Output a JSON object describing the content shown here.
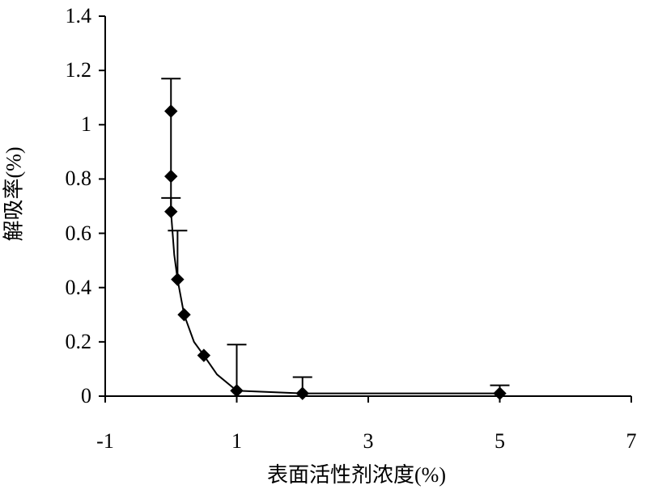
{
  "chart": {
    "type": "scatter-line-errorbar",
    "y_axis_label": "解吸率(%)",
    "x_axis_label": "表面活性剂浓度(%)",
    "xlim": [
      -1,
      7
    ],
    "ylim": [
      0,
      1.4
    ],
    "x_ticks": [
      -1,
      1,
      3,
      5,
      7
    ],
    "y_ticks": [
      0,
      0.2,
      0.4,
      0.6,
      0.8,
      1,
      1.2,
      1.4
    ],
    "background_color": "#ffffff",
    "axis_color": "#000000",
    "line_color": "#000000",
    "marker_color": "#000000",
    "marker_style": "diamond",
    "marker_size": 12,
    "line_width": 2,
    "axis_width": 2,
    "tick_length": 8,
    "label_fontsize": 26,
    "tick_fontsize": 26,
    "font_family": "SimSun",
    "data_points": [
      {
        "x": 0.0,
        "y": 1.05,
        "err": 0.12
      },
      {
        "x": 0.0,
        "y": 0.81,
        "err": 0.0
      },
      {
        "x": 0.0,
        "y": 0.68,
        "err": 0.05
      },
      {
        "x": 0.1,
        "y": 0.43,
        "err": 0.18
      },
      {
        "x": 0.2,
        "y": 0.3,
        "err": 0.0
      },
      {
        "x": 0.5,
        "y": 0.15,
        "err": 0.0
      },
      {
        "x": 1.0,
        "y": 0.02,
        "err": 0.17
      },
      {
        "x": 2.0,
        "y": 0.01,
        "err": 0.06
      },
      {
        "x": 5.0,
        "y": 0.01,
        "err": 0.03
      }
    ],
    "curve_points": [
      {
        "x": 0.0,
        "y": 1.05
      },
      {
        "x": 0.0,
        "y": 0.81
      },
      {
        "x": 0.0,
        "y": 0.68
      },
      {
        "x": 0.05,
        "y": 0.52
      },
      {
        "x": 0.1,
        "y": 0.43
      },
      {
        "x": 0.2,
        "y": 0.3
      },
      {
        "x": 0.35,
        "y": 0.2
      },
      {
        "x": 0.5,
        "y": 0.15
      },
      {
        "x": 0.7,
        "y": 0.08
      },
      {
        "x": 1.0,
        "y": 0.02
      },
      {
        "x": 2.0,
        "y": 0.01
      },
      {
        "x": 5.0,
        "y": 0.01
      }
    ]
  }
}
